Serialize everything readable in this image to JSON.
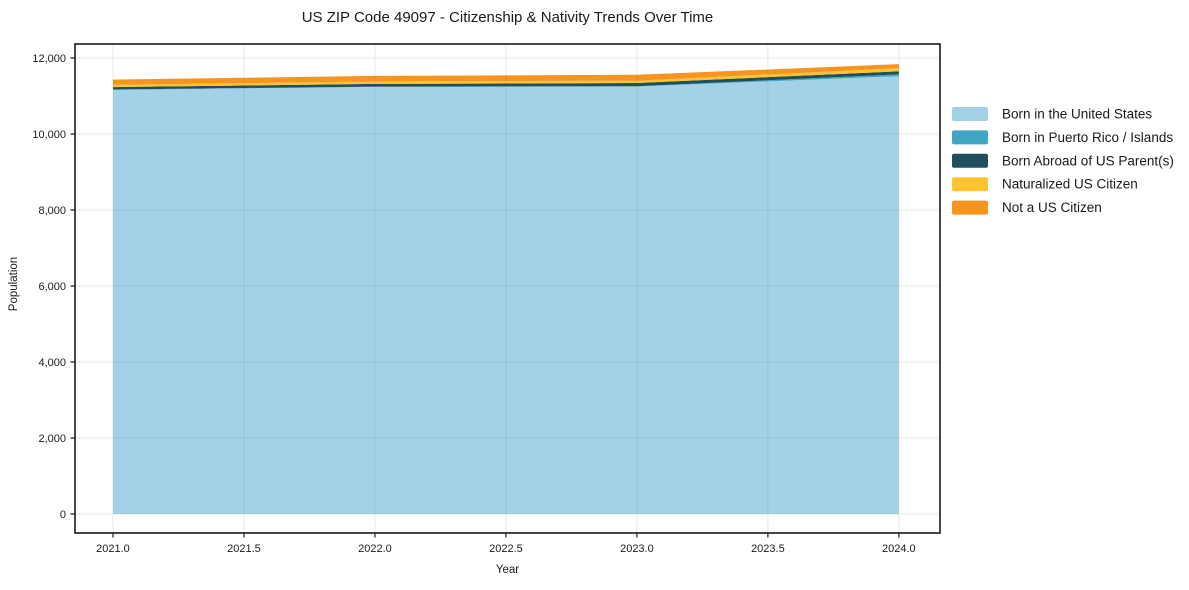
{
  "chart_data": {
    "type": "area",
    "stacked": true,
    "title": "US ZIP Code 49097 - Citizenship & Nativity Trends Over Time",
    "xlabel": "Year",
    "ylabel": "Population",
    "x": [
      2021,
      2022,
      2023,
      2024
    ],
    "series": [
      {
        "name": "Born in the United States",
        "color": "#a3d2e8",
        "values": [
          11160,
          11240,
          11250,
          11520
        ]
      },
      {
        "name": "Born in Puerto Rico / Islands",
        "color": "#41a6c4",
        "values": [
          10,
          8,
          8,
          50
        ]
      },
      {
        "name": "Born Abroad of US Parent(s)",
        "color": "#1f4e5f",
        "values": [
          65,
          70,
          85,
          80
        ]
      },
      {
        "name": "Naturalized US Citizen",
        "color": "#fdc330",
        "values": [
          60,
          65,
          60,
          80
        ]
      },
      {
        "name": "Not a US Citizen",
        "color": "#f5941f",
        "values": [
          135,
          145,
          155,
          110
        ]
      }
    ],
    "xticks": [
      2021.0,
      2021.5,
      2022.0,
      2022.5,
      2023.0,
      2023.5,
      2024.0
    ],
    "xtick_labels": [
      "2021.0",
      "2021.5",
      "2022.0",
      "2022.5",
      "2023.0",
      "2023.5",
      "2024.0"
    ],
    "yticks": [
      0,
      2000,
      4000,
      6000,
      8000,
      10000,
      12000
    ],
    "ytick_labels": [
      "0",
      "2,000",
      "4,000",
      "6,000",
      "8,000",
      "10,000",
      "12,000"
    ],
    "xlim": [
      2020.855,
      2024.157
    ],
    "ylim": [
      -500,
      12368
    ],
    "grid": true,
    "legend_position": "right",
    "colors": {
      "axis_border": "#1a1a1a",
      "grid": "#787878",
      "text": "#1a1a1a",
      "background": "#ffffff"
    }
  }
}
